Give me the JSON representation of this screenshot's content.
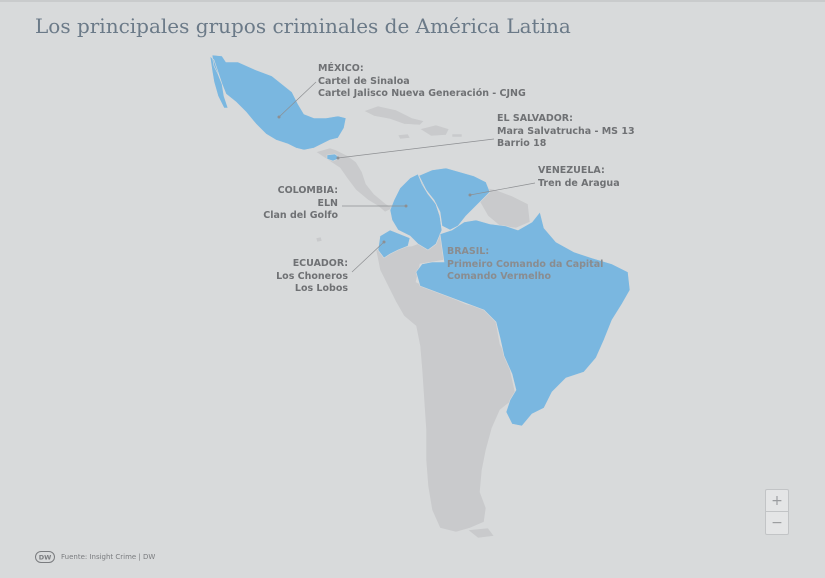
{
  "title": "Los principales grupos criminales de América Latina",
  "colors": {
    "background": "#d8dadb",
    "land": "#c9cacc",
    "highlight": "#7ab7e0",
    "label": "#6f7174",
    "title": "#6b7a88"
  },
  "highlighted_countries": [
    "México",
    "El Salvador",
    "Colombia",
    "Venezuela",
    "Ecuador",
    "Brasil"
  ],
  "labels": {
    "mexico": {
      "country": "MÉXICO:",
      "groups": [
        "Cartel de Sinaloa",
        "Cartel Jalisco Nueva Generación - CJNG"
      ]
    },
    "el_salvador": {
      "country": "EL SALVADOR:",
      "groups": [
        "Mara Salvatrucha - MS 13",
        "Barrio 18"
      ]
    },
    "venezuela": {
      "country": "VENEZUELA:",
      "groups": [
        "Tren de Aragua"
      ]
    },
    "colombia": {
      "country": "COLOMBIA:",
      "groups": [
        "ELN",
        "Clan del Golfo"
      ]
    },
    "ecuador": {
      "country": "ECUADOR:",
      "groups": [
        "Los Choneros",
        "Los Lobos"
      ]
    },
    "brasil": {
      "country": "BRASIL:",
      "groups": [
        "Primeiro Comando da Capital",
        "Comando Vermelho"
      ]
    }
  },
  "zoom": {
    "in_label": "+",
    "out_label": "−"
  },
  "footer": {
    "logo_text": "DW",
    "source": "Fuente: Insight Crime | DW"
  }
}
